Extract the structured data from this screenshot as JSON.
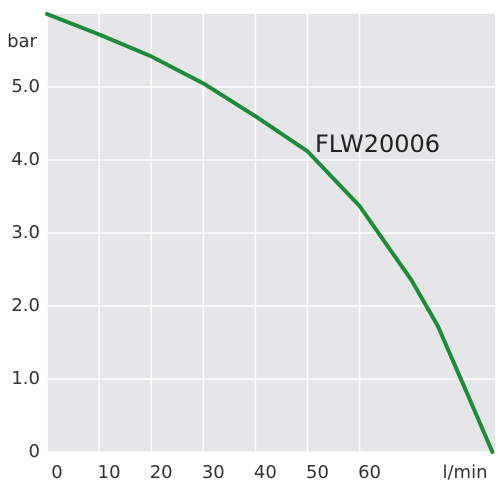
{
  "chart_data": {
    "type": "line",
    "y_label": "bar",
    "x_label": "l/min",
    "x": [
      0,
      10,
      20,
      30,
      40,
      50,
      60,
      70,
      75,
      80,
      85.5
    ],
    "series": [
      {
        "name": "FLW20006",
        "color": "#1f8a3c",
        "values": [
          6.0,
          5.72,
          5.42,
          5.05,
          4.6,
          4.12,
          3.37,
          2.35,
          1.73,
          0.91,
          0
        ]
      }
    ],
    "xlim": [
      0,
      86
    ],
    "xticks": [
      0,
      10,
      20,
      30,
      40,
      50,
      60
    ],
    "ylim": [
      0,
      6
    ],
    "yticks": [
      0,
      {
        "value": 1,
        "label": "1.0"
      },
      {
        "value": 2,
        "label": "2.0"
      },
      {
        "value": 3,
        "label": "3.0"
      },
      {
        "value": 4,
        "label": "4.0"
      },
      {
        "value": 5,
        "label": "5.0"
      }
    ],
    "grid": true
  }
}
